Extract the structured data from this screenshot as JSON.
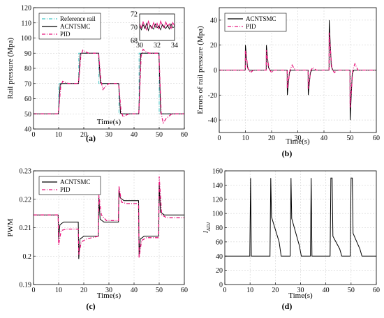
{
  "colors": {
    "acntsmc": "#000000",
    "pid": "#e8177d",
    "reference": "#46c8c8"
  },
  "chart_data": [
    {
      "type": "line",
      "panel": "a",
      "caption": "(a)",
      "xlabel": "Time(s)",
      "ylabel": "Rail pressure (Mpa)",
      "xlim": [
        0,
        60
      ],
      "ylim": [
        40,
        120
      ],
      "xticks": [
        0,
        10,
        20,
        30,
        40,
        50,
        60
      ],
      "yticks": [
        40,
        50,
        60,
        70,
        80,
        90,
        100,
        110,
        120
      ],
      "grid": true,
      "legend": "top-left",
      "series": [
        {
          "name": "Reference rail",
          "style": "dash-dot",
          "color_key": "reference",
          "x": [
            0,
            10,
            10,
            18,
            18,
            26,
            26,
            34,
            34,
            42,
            42,
            50,
            50,
            60
          ],
          "y": [
            50,
            50,
            70,
            70,
            90,
            90,
            70,
            70,
            50,
            50,
            90,
            90,
            50,
            50
          ]
        },
        {
          "name": "ACNTSMC",
          "style": "solid",
          "color_key": "acntsmc",
          "x": [
            0,
            9.9,
            10.6,
            11,
            17.9,
            18.6,
            19,
            25.9,
            26.6,
            27,
            33.9,
            34.6,
            35,
            41.9,
            42.6,
            43,
            49.9,
            50.6,
            51,
            60
          ],
          "y": [
            50,
            50,
            69.5,
            70,
            70,
            89.5,
            90,
            90,
            70.5,
            70,
            70,
            50.5,
            50,
            50,
            89.5,
            90,
            90,
            50.5,
            50,
            50
          ]
        },
        {
          "name": "PID",
          "style": "dash-dot",
          "color_key": "pid",
          "x": [
            0,
            9.9,
            10.8,
            11.6,
            12.5,
            14,
            17.9,
            18.8,
            19.6,
            20.6,
            22,
            25.9,
            26.8,
            27.6,
            28.6,
            30,
            33.9,
            34.8,
            35.6,
            36.6,
            38,
            41.9,
            42.8,
            43.6,
            44.6,
            46,
            49.9,
            50.8,
            51.6,
            52.8,
            55,
            60
          ],
          "y": [
            50,
            50,
            68,
            71.5,
            70.8,
            70,
            70,
            88,
            92,
            91,
            90,
            90,
            72,
            66,
            68,
            70,
            70,
            52,
            48,
            49,
            50,
            50,
            88,
            92.5,
            91,
            90,
            90,
            50,
            44,
            47,
            50,
            50
          ]
        }
      ],
      "inset": {
        "xlim": [
          30,
          34
        ],
        "ylim": [
          68,
          72
        ],
        "xticks": [
          30,
          32,
          34
        ],
        "yticks": [
          68,
          70,
          72
        ],
        "acntsmc": [
          70.2,
          69.6,
          70.4,
          69.8,
          70.6,
          69.5,
          70.3,
          70.0,
          69.7,
          70.5,
          69.9,
          70.2,
          69.6,
          70.4,
          70.1,
          69.8,
          70.3,
          69.7,
          70.5,
          69.9,
          70.1
        ],
        "pid": [
          70.5,
          69.9,
          70.8,
          70.1,
          69.6,
          70.9,
          70.2,
          69.8,
          70.7,
          70.0,
          70.6,
          69.7,
          70.9,
          70.3,
          69.9,
          70.8,
          70.1,
          70.5,
          69.8,
          70.7,
          70.2
        ]
      }
    },
    {
      "type": "line",
      "panel": "b",
      "caption": "(b)",
      "xlabel": "Time(s)",
      "ylabel": "Errors of rail pressure (Mpa)",
      "xlim": [
        0,
        60
      ],
      "ylim": [
        -50,
        50
      ],
      "xticks": [
        0,
        10,
        20,
        30,
        40,
        50,
        60
      ],
      "yticks": [
        -40,
        -20,
        0,
        20,
        40
      ],
      "grid": true,
      "legend": "top-left",
      "series": [
        {
          "name": "ACNTSMC",
          "style": "solid",
          "color_key": "acntsmc",
          "x": [
            0,
            9.95,
            10,
            10.8,
            11.4,
            17.95,
            18,
            18.8,
            19.4,
            25.95,
            26,
            26.8,
            27.4,
            33.95,
            34,
            34.8,
            35.4,
            41.95,
            42,
            42.8,
            43.4,
            49.95,
            50,
            50.8,
            51.4,
            60
          ],
          "y": [
            0,
            0,
            20,
            2,
            0,
            0,
            20,
            2,
            0,
            0,
            -20,
            -2,
            0,
            0,
            -20,
            -2,
            0,
            0,
            40,
            3,
            0,
            0,
            -40,
            -3,
            0,
            0
          ]
        },
        {
          "name": "PID",
          "style": "dash-dot",
          "color_key": "pid",
          "x": [
            0,
            9.95,
            10,
            11,
            12,
            13,
            17.95,
            18,
            19,
            20,
            21,
            25.95,
            26,
            27,
            27.8,
            29,
            33.95,
            34,
            35,
            35.8,
            37,
            41.95,
            42,
            43,
            44,
            45,
            49.95,
            50,
            51,
            51.8,
            53,
            60
          ],
          "y": [
            0,
            0,
            16,
            1,
            -2,
            0,
            0,
            16,
            1,
            -2,
            0,
            0,
            -15,
            0,
            4,
            0,
            0,
            -15,
            0,
            2,
            0,
            0,
            30,
            1,
            -2,
            0,
            0,
            -30,
            0,
            5,
            0,
            0
          ]
        }
      ]
    },
    {
      "type": "line",
      "panel": "c",
      "caption": "(c)",
      "xlabel": "Time(s)",
      "ylabel": "PWM",
      "xlim": [
        0,
        60
      ],
      "ylim": [
        0.19,
        0.23
      ],
      "xticks": [
        0,
        10,
        20,
        30,
        40,
        50,
        60
      ],
      "yticks": [
        0.19,
        0.2,
        0.21,
        0.22,
        0.23
      ],
      "grid": true,
      "legend": "top-left",
      "series": [
        {
          "name": "ACNTSMC",
          "style": "solid",
          "color_key": "acntsmc",
          "x": [
            0,
            9.8,
            10,
            10.5,
            12,
            17.8,
            18,
            18.5,
            20,
            25.8,
            26,
            26.5,
            28,
            33.8,
            34,
            34.5,
            36,
            41.8,
            42,
            42.5,
            44,
            49.8,
            50,
            50.5,
            52,
            60
          ],
          "y": [
            0.2145,
            0.2145,
            0.206,
            0.211,
            0.212,
            0.212,
            0.199,
            0.206,
            0.207,
            0.207,
            0.2205,
            0.213,
            0.212,
            0.212,
            0.2235,
            0.2205,
            0.2195,
            0.2195,
            0.2005,
            0.206,
            0.207,
            0.207,
            0.226,
            0.2155,
            0.2145,
            0.2145
          ]
        },
        {
          "name": "PID",
          "style": "dash-dot",
          "color_key": "pid",
          "x": [
            0,
            9.8,
            10,
            11,
            13,
            17.8,
            18,
            19,
            21,
            25.8,
            26,
            27,
            29,
            33.8,
            34,
            35,
            37,
            41.8,
            42,
            43,
            45,
            49.8,
            50,
            51,
            53,
            60
          ],
          "y": [
            0.2145,
            0.2145,
            0.204,
            0.209,
            0.2095,
            0.2095,
            0.2005,
            0.205,
            0.206,
            0.207,
            0.2215,
            0.2145,
            0.2125,
            0.2125,
            0.2245,
            0.219,
            0.2185,
            0.2185,
            0.1995,
            0.2055,
            0.2065,
            0.2065,
            0.228,
            0.2145,
            0.2135,
            0.2135
          ]
        }
      ]
    },
    {
      "type": "line",
      "panel": "d",
      "caption": "(d)",
      "xlabel": "Time(s)",
      "ylabel_main": "l",
      "ylabel_sub": "ADJ",
      "xlim": [
        0,
        60
      ],
      "ylim": [
        0,
        160
      ],
      "xticks": [
        0,
        10,
        20,
        30,
        40,
        50,
        60
      ],
      "yticks": [
        0,
        20,
        40,
        60,
        80,
        100,
        120,
        140,
        160
      ],
      "grid": true,
      "series": [
        {
          "name": "",
          "style": "solid",
          "color_key": "acntsmc",
          "x": [
            0,
            9.9,
            10.2,
            10.5,
            17.9,
            18.2,
            18.5,
            21.5,
            22.3,
            25.9,
            26.2,
            26.5,
            29.5,
            30.3,
            33.9,
            34.2,
            34.5,
            41.7,
            42,
            42.5,
            42.8,
            45.5,
            46.3,
            49.7,
            50,
            50.5,
            50.8,
            53.5,
            54.3,
            60
          ],
          "y": [
            40,
            40,
            150,
            40,
            40,
            150,
            95,
            60,
            40,
            40,
            150,
            93,
            55,
            40,
            40,
            150,
            40,
            40,
            150,
            150,
            68,
            50,
            40,
            40,
            150,
            150,
            72,
            50,
            40,
            40
          ]
        }
      ]
    }
  ]
}
